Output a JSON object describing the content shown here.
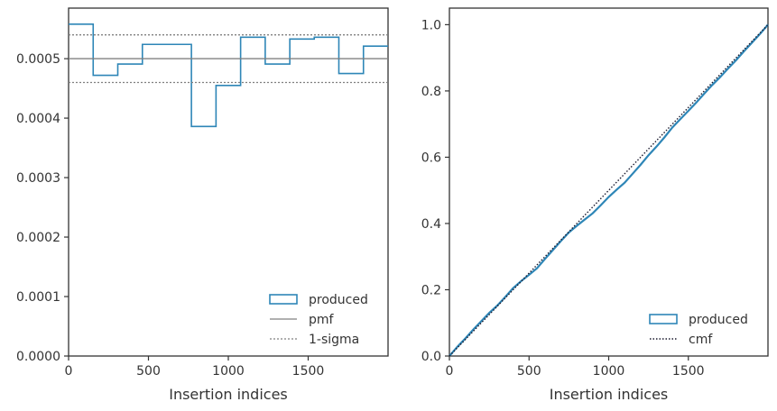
{
  "colors": {
    "produced": "#2e86b7",
    "pmf": "#808080",
    "sigma": "#808080",
    "cmf": "#1a1a2e",
    "axes": "#333333"
  },
  "chart_data": [
    {
      "type": "step",
      "xlabel": "Insertion indices",
      "ylabel": "",
      "xlim": [
        0,
        2000
      ],
      "ylim": [
        0,
        0.000585
      ],
      "xticks": [
        0,
        500,
        1000,
        1500
      ],
      "xtick_labels": [
        "0",
        "500",
        "1000",
        "1500"
      ],
      "yticks": [
        0.0,
        0.0001,
        0.0002,
        0.0003,
        0.0004,
        0.0005
      ],
      "ytick_labels": [
        "0.0000",
        "0.0001",
        "0.0002",
        "0.0003",
        "0.0004",
        "0.0005"
      ],
      "bin_edges": [
        0,
        154,
        308,
        462,
        615,
        769,
        923,
        1077,
        1231,
        1385,
        1538,
        1692,
        1846,
        2000
      ],
      "series": [
        {
          "name": "produced",
          "style": "step",
          "values": [
            0.000558,
            0.000472,
            0.000491,
            0.000524,
            0.000524,
            0.000386,
            0.000455,
            0.000536,
            0.000491,
            0.000533,
            0.000536,
            0.000475,
            0.000521
          ]
        },
        {
          "name": "pmf",
          "style": "hline",
          "value": 0.0005
        },
        {
          "name": "1-sigma",
          "style": "hline-dotted",
          "values": [
            0.00054,
            0.00046
          ]
        }
      ],
      "legend": {
        "placement": "lower-right",
        "entries": [
          "produced",
          "pmf",
          "1-sigma"
        ]
      }
    },
    {
      "type": "line",
      "xlabel": "Insertion indices",
      "ylabel": "",
      "xlim": [
        0,
        2000
      ],
      "ylim": [
        0,
        1.05
      ],
      "xticks": [
        0,
        500,
        1000,
        1500
      ],
      "xtick_labels": [
        "0",
        "500",
        "1000",
        "1500"
      ],
      "yticks": [
        0.0,
        0.2,
        0.4,
        0.6,
        0.8,
        1.0
      ],
      "ytick_labels": [
        "0.0",
        "0.2",
        "0.4",
        "0.6",
        "0.8",
        "1.0"
      ],
      "series": [
        {
          "name": "produced",
          "style": "solid",
          "x": [
            0,
            50,
            100,
            150,
            200,
            250,
            300,
            350,
            400,
            450,
            500,
            550,
            600,
            650,
            700,
            750,
            800,
            850,
            900,
            950,
            1000,
            1050,
            1100,
            1150,
            1200,
            1250,
            1300,
            1350,
            1400,
            1450,
            1500,
            1550,
            1600,
            1650,
            1700,
            1750,
            1800,
            1850,
            1900,
            1950,
            2000
          ],
          "y": [
            0,
            0.028,
            0.053,
            0.08,
            0.105,
            0.13,
            0.152,
            0.178,
            0.205,
            0.226,
            0.245,
            0.265,
            0.293,
            0.32,
            0.347,
            0.373,
            0.393,
            0.412,
            0.431,
            0.455,
            0.48,
            0.502,
            0.523,
            0.55,
            0.577,
            0.606,
            0.632,
            0.66,
            0.69,
            0.715,
            0.74,
            0.765,
            0.792,
            0.818,
            0.842,
            0.868,
            0.893,
            0.92,
            0.946,
            0.972,
            1.0
          ]
        },
        {
          "name": "cmf",
          "style": "dotted",
          "x": [
            0,
            2000
          ],
          "y": [
            0,
            1.0
          ]
        }
      ],
      "legend": {
        "placement": "lower-right",
        "entries": [
          "produced",
          "cmf"
        ]
      }
    }
  ]
}
